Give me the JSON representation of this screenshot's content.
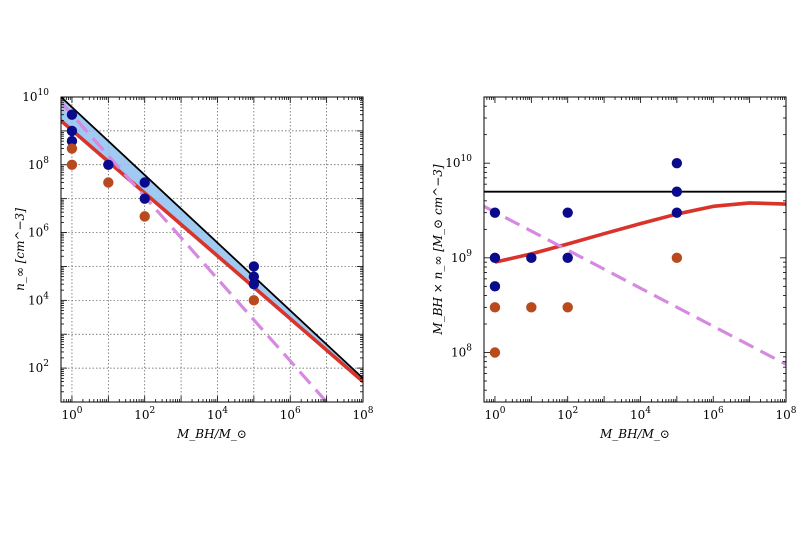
{
  "chart_data": [
    {
      "type": "scatter",
      "title": "",
      "xlabel": "M_BH/M_⊙",
      "ylabel": "n_∞ [cm^−3]",
      "x_scale": "log",
      "y_scale": "log",
      "xlim": [
        0.5,
        100000000
      ],
      "ylim": [
        10,
        10000000000
      ],
      "grid": true,
      "x_ticks": [
        {
          "value": 1,
          "base": "10",
          "exp": "0"
        },
        {
          "value": 100,
          "base": "10",
          "exp": "2"
        },
        {
          "value": 10000,
          "base": "10",
          "exp": "4"
        },
        {
          "value": 1000000,
          "base": "10",
          "exp": "6"
        },
        {
          "value": 100000000,
          "base": "10",
          "exp": "8"
        }
      ],
      "y_ticks": [
        {
          "value": 100,
          "base": "10",
          "exp": "2"
        },
        {
          "value": 10000,
          "base": "10",
          "exp": "4"
        },
        {
          "value": 1000000,
          "base": "10",
          "exp": "6"
        },
        {
          "value": 100000000,
          "base": "10",
          "exp": "8"
        },
        {
          "value": 10000000000,
          "base": "10",
          "exp": "10"
        }
      ],
      "series": [
        {
          "color": "#0a0a8c",
          "kind": "points",
          "x": [
            1,
            1,
            1,
            10,
            100,
            100,
            100000,
            100000,
            100000
          ],
          "y": [
            3000000000,
            1000000000,
            500000000,
            100000000,
            30000000,
            10000000,
            100000,
            50000,
            30000
          ]
        },
        {
          "color": "#b84a1e",
          "kind": "points",
          "x": [
            1,
            1,
            10,
            100,
            100000
          ],
          "y": [
            300000000,
            100000000,
            30000000,
            3000000,
            10000
          ]
        },
        {
          "color": "#000000",
          "kind": "line",
          "x": [
            0.5,
            100000000
          ],
          "y": [
            10000000000,
            50
          ]
        },
        {
          "color": "#d9342b",
          "kind": "line",
          "x": [
            0.5,
            100000000
          ],
          "y": [
            2000000000,
            40
          ]
        },
        {
          "color": "#d58ae0",
          "kind": "dashed",
          "x": [
            0.5,
            10000000
          ],
          "y": [
            7000000000,
            10
          ]
        },
        {
          "color": "#8fc1f0",
          "kind": "band",
          "x": [
            0.5,
            100000000
          ],
          "y_low": [
            2000000000,
            40
          ],
          "y_high": [
            10000000000,
            50
          ]
        }
      ]
    },
    {
      "type": "scatter",
      "title": "",
      "xlabel": "M_BH/M_⊙",
      "ylabel": "M_BH × n_∞ [M_⊙ cm^−3]",
      "x_scale": "log",
      "y_scale": "log",
      "xlim": [
        0.5,
        100000000
      ],
      "ylim": [
        30000000,
        50000000000
      ],
      "grid": false,
      "x_ticks": [
        {
          "value": 1,
          "base": "10",
          "exp": "0"
        },
        {
          "value": 100,
          "base": "10",
          "exp": "2"
        },
        {
          "value": 10000,
          "base": "10",
          "exp": "4"
        },
        {
          "value": 1000000,
          "base": "10",
          "exp": "6"
        },
        {
          "value": 100000000,
          "base": "10",
          "exp": "8"
        }
      ],
      "y_ticks": [
        {
          "value": 100000000,
          "base": "10",
          "exp": "8"
        },
        {
          "value": 1000000000,
          "base": "10",
          "exp": "9"
        },
        {
          "value": 10000000000,
          "base": "10",
          "exp": "10"
        }
      ],
      "series": [
        {
          "color": "#0a0a8c",
          "kind": "points",
          "x": [
            1,
            1,
            1,
            10,
            100,
            100,
            100000,
            100000,
            100000
          ],
          "y": [
            3000000000,
            1000000000,
            500000000,
            1000000000,
            3000000000,
            1000000000,
            10000000000,
            5000000000,
            3000000000
          ]
        },
        {
          "color": "#b84a1e",
          "kind": "points",
          "x": [
            1,
            1,
            10,
            100,
            100000
          ],
          "y": [
            300000000,
            100000000,
            300000000,
            300000000,
            1000000000
          ]
        },
        {
          "color": "#000000",
          "kind": "line",
          "x": [
            0.5,
            100000000
          ],
          "y": [
            5000000000,
            5000000000
          ]
        },
        {
          "color": "#d9342b",
          "kind": "line",
          "x": [
            1,
            10,
            100,
            1000,
            10000,
            100000,
            1000000,
            10000000,
            100000000
          ],
          "y": [
            900000000,
            1100000000,
            1400000000,
            1800000000,
            2300000000,
            2900000000,
            3500000000,
            3800000000,
            3700000000
          ]
        },
        {
          "color": "#d58ae0",
          "kind": "dashed",
          "x": [
            0.5,
            100000000
          ],
          "y": [
            3500000000,
            75000000
          ]
        }
      ]
    }
  ]
}
